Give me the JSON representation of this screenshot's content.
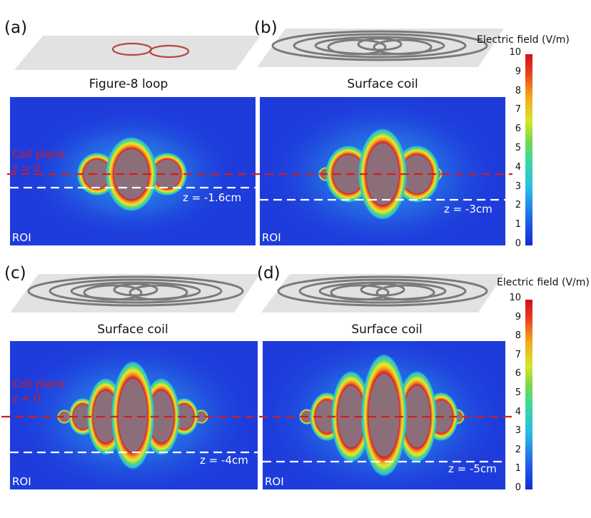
{
  "panels": [
    {
      "letter": "(a)",
      "title": "Figure-8 loop",
      "z_label": "z = -1.6cm",
      "roi": "ROI",
      "coil_plane": "Coil plane",
      "z0": "z = 0"
    },
    {
      "letter": "(b)",
      "title": "Surface coil",
      "z_label": "z = -3cm",
      "roi": "ROI"
    },
    {
      "letter": "(c)",
      "title": "Surface coil",
      "z_label": "z = -4cm",
      "roi": "ROI",
      "coil_plane": "Coil plane",
      "z0": "z = 0"
    },
    {
      "letter": "(d)",
      "title": "Surface coil",
      "z_label": "z = -5cm",
      "roi": "ROI"
    }
  ],
  "colorbar": {
    "title": "Electric field (V/m)",
    "ticks": [
      "10",
      "9",
      "8",
      "7",
      "6",
      "5",
      "4",
      "3",
      "2",
      "1",
      "0"
    ]
  },
  "colors": {
    "coil_plane_line": "#d41c1c",
    "roi_line": "#ffffff",
    "field_bg": "#1e3cdc",
    "saturated": "#8c6e7a"
  }
}
